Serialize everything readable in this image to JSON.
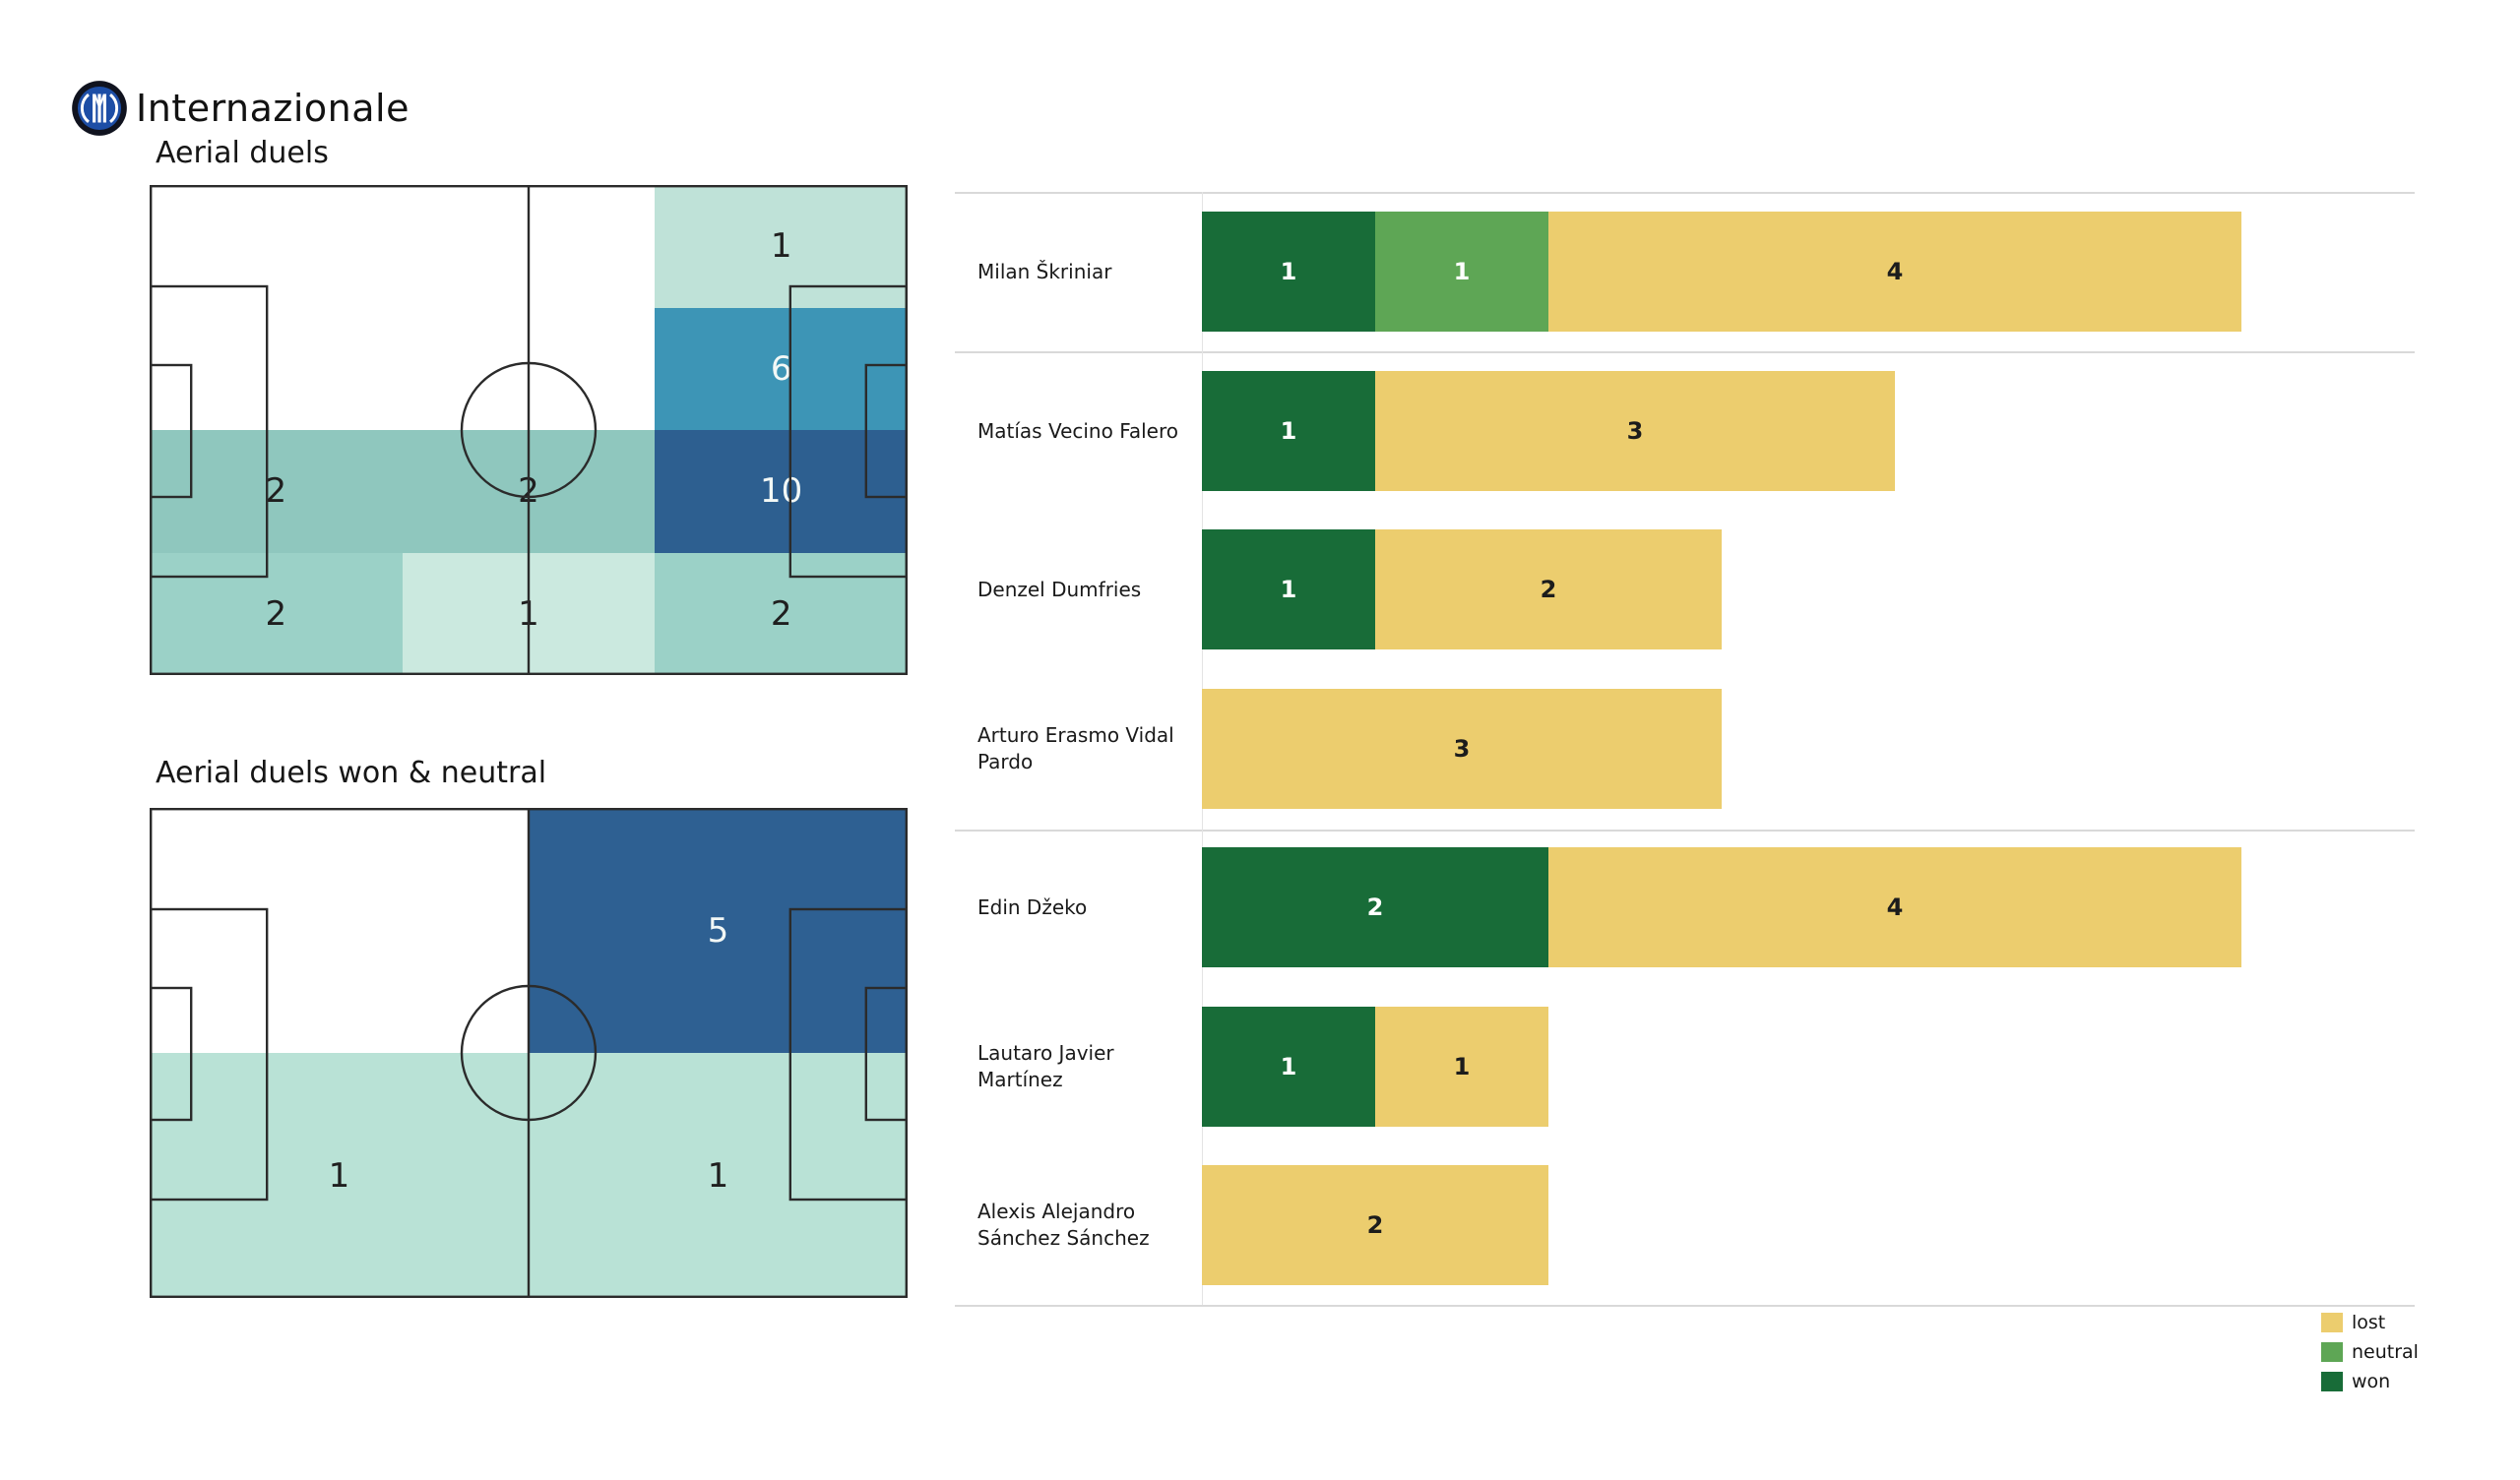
{
  "header": {
    "team_name": "Internazionale",
    "logo": "inter-milan-crest",
    "logo_colors": {
      "outer_ring": "#10131f",
      "inner_disc": "#1d4ea6",
      "monogram": "#ffffff"
    }
  },
  "colors": {
    "won": "#186c38",
    "neutral": "#5ea655",
    "lost": "#eccd6e",
    "pitch_line": "#2b2b2b",
    "separator": "#d9d9d9"
  },
  "chart_data": [
    {
      "type": "heatmap",
      "title": "Aerial duels",
      "layout_hint": "football pitch, 3 columns x 4 rows, unlabeled cells are empty",
      "zones": [
        {
          "x": 0.6667,
          "y": 0.0,
          "w": 0.3333,
          "h": 0.25,
          "value": 1,
          "color": "#bfe2d8",
          "label_tone": "dark"
        },
        {
          "x": 0.6667,
          "y": 0.25,
          "w": 0.3333,
          "h": 0.25,
          "value": 6,
          "color": "#3d95b6",
          "label_tone": "light"
        },
        {
          "x": 0.0,
          "y": 0.5,
          "w": 0.3333,
          "h": 0.25,
          "value": 2,
          "color": "#8fc7be",
          "label_tone": "dark"
        },
        {
          "x": 0.3333,
          "y": 0.5,
          "w": 0.3334,
          "h": 0.25,
          "value": 2,
          "color": "#8fc7be",
          "label_tone": "dark"
        },
        {
          "x": 0.6667,
          "y": 0.5,
          "w": 0.3333,
          "h": 0.25,
          "value": 10,
          "color": "#2d5f90",
          "label_tone": "light"
        },
        {
          "x": 0.0,
          "y": 0.75,
          "w": 0.3333,
          "h": 0.25,
          "value": 2,
          "color": "#9bd1c7",
          "label_tone": "dark"
        },
        {
          "x": 0.3333,
          "y": 0.75,
          "w": 0.3334,
          "h": 0.25,
          "value": 1,
          "color": "#cbe9df",
          "label_tone": "dark"
        },
        {
          "x": 0.6667,
          "y": 0.75,
          "w": 0.3333,
          "h": 0.25,
          "value": 2,
          "color": "#9bd1c7",
          "label_tone": "dark"
        }
      ]
    },
    {
      "type": "heatmap",
      "title": "Aerial duels won & neutral",
      "layout_hint": "football pitch, 2 columns x 2 rows, unlabeled cells are empty",
      "zones": [
        {
          "x": 0.5,
          "y": 0.0,
          "w": 0.5,
          "h": 0.5,
          "value": 5,
          "color": "#2e6092",
          "label_tone": "light"
        },
        {
          "x": 0.0,
          "y": 0.5,
          "w": 0.5,
          "h": 0.5,
          "value": 1,
          "color": "#b9e2d6",
          "label_tone": "dark"
        },
        {
          "x": 0.5,
          "y": 0.5,
          "w": 0.5,
          "h": 0.5,
          "value": 1,
          "color": "#b9e2d6",
          "label_tone": "dark"
        }
      ]
    },
    {
      "type": "bar",
      "orientation": "horizontal",
      "stacked": true,
      "xmax": 6,
      "grid": false,
      "categories": [
        "Milan Škriniar",
        "Matías Vecino Falero",
        "Denzel Dumfries",
        "Arturo Erasmo Vidal Pardo",
        "Edin Džeko",
        "Lautaro Javier Martínez",
        "Alexis Alejandro Sánchez Sánchez"
      ],
      "category_lines": [
        [
          "Milan Škriniar"
        ],
        [
          "Matías Vecino Falero"
        ],
        [
          "Denzel Dumfries"
        ],
        [
          "Arturo Erasmo Vidal",
          "Pardo"
        ],
        [
          "Edin Džeko"
        ],
        [
          "Lautaro Javier Martínez"
        ],
        [
          "Alexis Alejandro",
          "Sánchez Sánchez"
        ]
      ],
      "series": [
        {
          "name": "won",
          "color": "#186c38",
          "values": [
            1,
            1,
            1,
            0,
            2,
            1,
            0
          ]
        },
        {
          "name": "neutral",
          "color": "#5ea655",
          "values": [
            1,
            0,
            0,
            0,
            0,
            0,
            0
          ]
        },
        {
          "name": "lost",
          "color": "#eccd6e",
          "values": [
            4,
            3,
            2,
            3,
            4,
            1,
            2
          ]
        }
      ],
      "group_separators_after_row": [
        1,
        4,
        7
      ],
      "legend": {
        "position": "bottom-right",
        "items": [
          {
            "label": "lost",
            "series": "lost"
          },
          {
            "label": "neutral",
            "series": "neutral"
          },
          {
            "label": "won",
            "series": "won"
          }
        ]
      }
    }
  ]
}
